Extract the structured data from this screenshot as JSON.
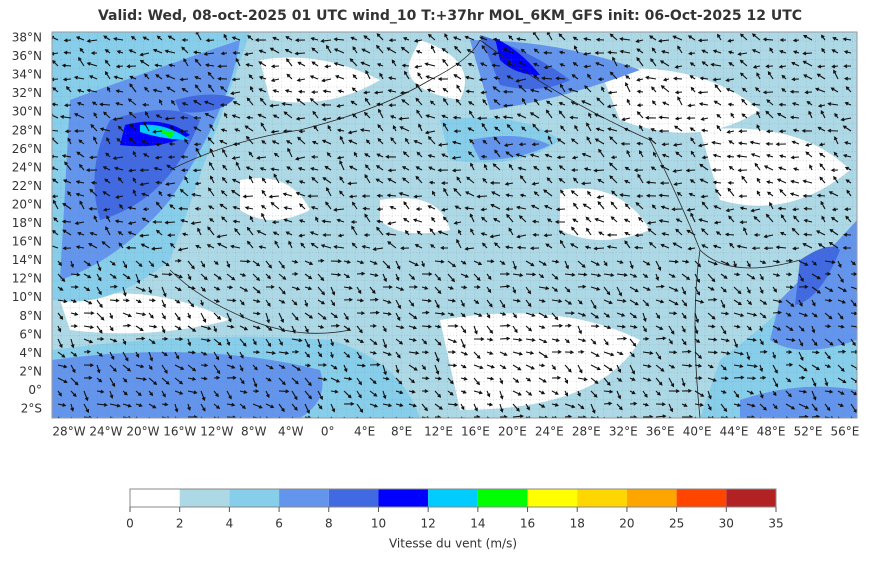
{
  "title": "Valid: Wed, 08-oct-2025   01 UTC   wind_10   T:+37hr   MOL_6KM_GFS   init: 06-Oct-2025    12 UTC",
  "lat_labels": [
    "38°N",
    "36°N",
    "34°N",
    "32°N",
    "30°N",
    "28°N",
    "26°N",
    "24°N",
    "22°N",
    "20°N",
    "18°N",
    "16°N",
    "14°N",
    "12°N",
    "10°N",
    "8°N",
    "6°N",
    "4°N",
    "2°N",
    "0°",
    "2°S"
  ],
  "lon_labels": [
    "28°W",
    "24°W",
    "20°W",
    "16°W",
    "12°W",
    "8°W",
    "4°W",
    "0°",
    "4°E",
    "8°E",
    "12°E",
    "16°E",
    "20°E",
    "24°E",
    "28°E",
    "32°E",
    "36°E",
    "40°E",
    "44°E",
    "48°E",
    "52°E",
    "56°E"
  ],
  "colorbar": {
    "label": "Vitesse du vent (m/s)",
    "ticks": [
      0,
      2,
      4,
      6,
      8,
      10,
      12,
      14,
      16,
      18,
      20,
      25,
      30,
      35
    ],
    "colors": [
      "#ffffff",
      "#add8e6",
      "#87ceeb",
      "#6495ed",
      "#4169e1",
      "#0000ff",
      "#00ccff",
      "#00ff00",
      "#ffff00",
      "#ffd700",
      "#ffa500",
      "#ff4500",
      "#b22222"
    ]
  }
}
